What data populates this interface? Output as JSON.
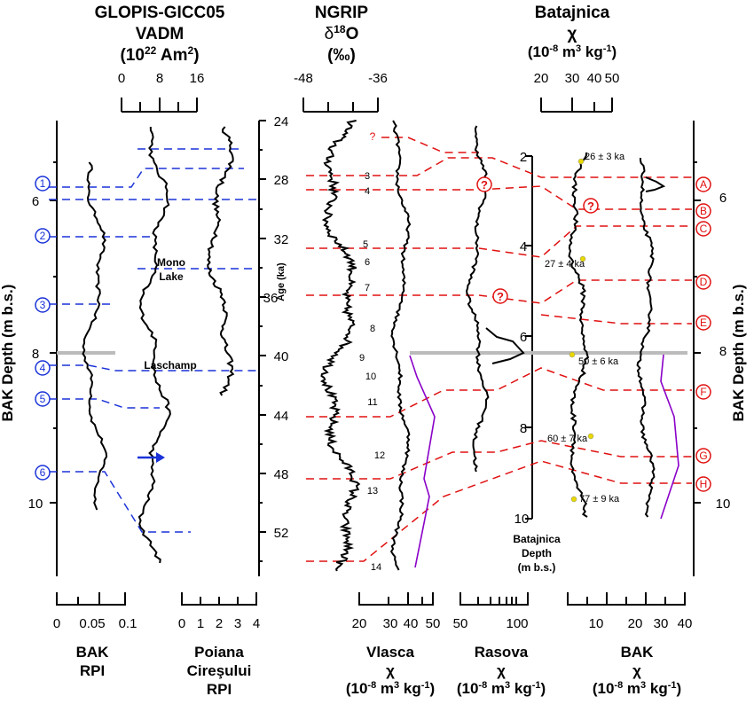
{
  "headers": {
    "glopis_title": "GLOPIS-GICC05",
    "glopis_sub": "VADM",
    "glopis_unit_pre": "(10",
    "glopis_unit_exp": "22",
    "glopis_unit_post": " Am",
    "glopis_unit_exp2": "2",
    "glopis_unit_end": ")",
    "ngrip_title": "NGRIP",
    "ngrip_sub_pre": "δ",
    "ngrip_sub_exp": "18",
    "ngrip_sub_post": "O",
    "ngrip_unit": "(‰)",
    "bat_title": "Batajnica",
    "bat_chi": "χ",
    "bat_unit_pre": "(10",
    "bat_unit_exp": "-8",
    "bat_unit_mid": " m",
    "bat_unit_exp2": "3",
    "bat_unit_kg": " kg",
    "bat_unit_exp3": "-1",
    "bat_unit_end": ")"
  },
  "top_axes": {
    "glopis_ticks": [
      "0",
      "8",
      "16"
    ],
    "ngrip_ticks": [
      "-48",
      "-36"
    ],
    "bat_ticks": [
      "20",
      "30",
      "40",
      "50"
    ]
  },
  "bottom_axes": {
    "bak_rpi_ticks": [
      "0",
      "0.05",
      "0.1"
    ],
    "poiana_ticks": [
      "0",
      "1",
      "2",
      "3",
      "4"
    ],
    "vlasca_ticks": [
      "20",
      "30",
      "40",
      "50"
    ],
    "rasova_ticks": [
      "50",
      "100"
    ],
    "bak_chi_ticks": [
      "10",
      "20",
      "30",
      "40"
    ]
  },
  "bottom_labels": {
    "bak_rpi_1": "BAK",
    "bak_rpi_2": "RPI",
    "poiana_1": "Poiana",
    "poiana_2": "Cireşului",
    "poiana_3": "RPI",
    "vlasca_1": "Vlasca",
    "rasova_1": "Rasova",
    "bak_1": "BAK",
    "chi": "χ",
    "unit_pre": "(10",
    "unit_exp": "-8",
    "unit_mid": " m",
    "unit_exp2": "3",
    "unit_kg": " kg",
    "unit_exp3": "-1",
    "unit_end": ")"
  },
  "axis_labels": {
    "bak_depth": "BAK Depth  (m b.s.)",
    "age": "Age (ka)",
    "bat_depth_1": "Batajnica",
    "bat_depth_2": "Depth",
    "bat_depth_3": "(m b.s.)"
  },
  "left_depth_ticks": [
    "6",
    "8",
    "10"
  ],
  "right_depth_ticks": [
    "6",
    "8",
    "10"
  ],
  "age_ticks": [
    "24",
    "28",
    "32",
    "36",
    "40",
    "44",
    "48",
    "52"
  ],
  "bat_depth_ticks": [
    "2",
    "4",
    "6",
    "8",
    "10"
  ],
  "annotations": {
    "mono_1": "Mono",
    "mono_2": "Lake",
    "laschamp": "Laschamp",
    "question": "?"
  },
  "blue_markers": [
    "1",
    "2",
    "3",
    "4",
    "5",
    "6"
  ],
  "red_markers": [
    "A",
    "B",
    "C",
    "D",
    "E",
    "F",
    "G",
    "H"
  ],
  "dansgaard_oeschger": [
    "3",
    "4",
    "5",
    "6",
    "7",
    "8",
    "9",
    "10",
    "11",
    "12",
    "13",
    "14"
  ],
  "ages": [
    "26 ± 3 ka",
    "27 ± 4 ka",
    "50 ± 6 ka",
    "60 ± 7 ka",
    "77 ± 9 ka"
  ],
  "colors": {
    "blue": "#1a32d8",
    "red": "#e01010",
    "purple": "#8a00c8",
    "grey": "#bbbbbb"
  },
  "chart_data": {
    "type": "line",
    "series": [
      {
        "name": "GLOPIS-GICC05 VADM",
        "x_unit": "10^22 Am^2",
        "y_unit": "ka",
        "points": [
          [
            6,
            26
          ],
          [
            5,
            28
          ],
          [
            6,
            30
          ],
          [
            4,
            32
          ],
          [
            5,
            34
          ],
          [
            4,
            36
          ],
          [
            3,
            38
          ],
          [
            4,
            40
          ],
          [
            2,
            41
          ]
        ]
      },
      {
        "name": "NGRIP δ18O",
        "x_unit": "‰",
        "y_unit": "ka",
        "points": [
          [
            -43,
            24
          ],
          [
            -42,
            26
          ],
          [
            -40,
            28
          ],
          [
            -43,
            30
          ],
          [
            -42,
            32
          ],
          [
            -41,
            34
          ],
          [
            -40,
            36
          ],
          [
            -44,
            38
          ],
          [
            -42,
            40
          ],
          [
            -43,
            42
          ],
          [
            -41,
            44
          ],
          [
            -42,
            46
          ],
          [
            -40,
            48
          ],
          [
            -43,
            50
          ],
          [
            -42,
            52
          ],
          [
            -41,
            54
          ]
        ]
      },
      {
        "name": "Vlasca χ",
        "x_unit": "10^-8 m^3 kg^-1",
        "y_unit": "ka",
        "points": [
          [
            40,
            24
          ],
          [
            38,
            26
          ],
          [
            41,
            28
          ],
          [
            39,
            30
          ],
          [
            42,
            32
          ],
          [
            40,
            34
          ],
          [
            39,
            36
          ],
          [
            38,
            38
          ],
          [
            31,
            40
          ],
          [
            30,
            42
          ],
          [
            32,
            44
          ],
          [
            31,
            46
          ],
          [
            30,
            48
          ],
          [
            31,
            50
          ],
          [
            30,
            52
          ],
          [
            31,
            54
          ]
        ]
      },
      {
        "name": "Rasova χ",
        "x_unit": "10^-8 m^3 kg^-1",
        "y_unit": "ka",
        "points": [
          [
            68,
            24
          ],
          [
            72,
            26
          ],
          [
            70,
            28
          ],
          [
            66,
            30
          ],
          [
            69,
            32
          ],
          [
            71,
            34
          ],
          [
            65,
            36
          ],
          [
            80,
            38
          ],
          [
            117,
            40
          ],
          [
            55,
            42
          ],
          [
            60,
            44
          ],
          [
            58,
            46
          ]
        ]
      },
      {
        "name": "Batajnica χ",
        "x_unit": "10^-8 m^3 kg^-1",
        "y_unit": "m",
        "points": [
          [
            34,
            1.9
          ],
          [
            34,
            2.5
          ],
          [
            32,
            3
          ],
          [
            34,
            3.5
          ],
          [
            36,
            4
          ],
          [
            32,
            4.5
          ],
          [
            31,
            5
          ],
          [
            34,
            5.5
          ],
          [
            30,
            6
          ],
          [
            33,
            6.5
          ],
          [
            33,
            7
          ],
          [
            34,
            7.5
          ],
          [
            33,
            8
          ],
          [
            34,
            8.5
          ],
          [
            32,
            9
          ],
          [
            31,
            9.5
          ]
        ]
      }
    ],
    "ylim_age": [
      24,
      54
    ],
    "ylim_bak_depth": [
      5,
      11
    ],
    "ylim_batajnica_depth": [
      1.7,
      10
    ]
  }
}
